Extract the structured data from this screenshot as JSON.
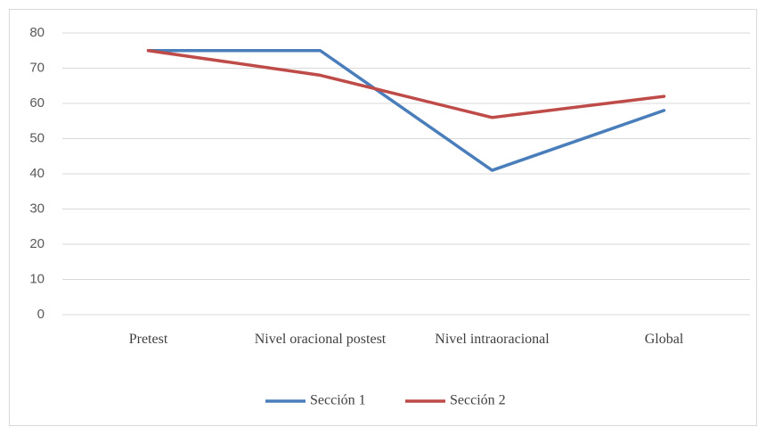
{
  "chart_data": {
    "type": "line",
    "categories": [
      "Pretest",
      "Nivel oracional postest",
      "Nivel intraoracional",
      "Global"
    ],
    "series": [
      {
        "name": "Sección 1",
        "color": "#4a7ebb",
        "values": [
          75,
          75,
          41,
          58
        ]
      },
      {
        "name": "Sección 2",
        "color": "#be4b48",
        "values": [
          75,
          68,
          56,
          62
        ]
      }
    ],
    "ylim": [
      0,
      80
    ],
    "yticks": [
      0,
      10,
      20,
      30,
      40,
      50,
      60,
      70,
      80
    ],
    "grid": true,
    "legend": "bottom"
  }
}
